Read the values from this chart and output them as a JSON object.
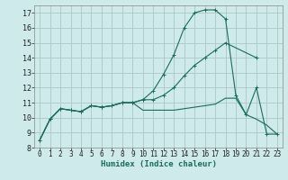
{
  "background_color": "#ceeaea",
  "grid_color": "#b0cccc",
  "line_color": "#1a6b5a",
  "xlabel": "Humidex (Indice chaleur)",
  "ylim": [
    8,
    17.5
  ],
  "xlim": [
    -0.5,
    23.5
  ],
  "yticks": [
    8,
    9,
    10,
    11,
    12,
    13,
    14,
    15,
    16,
    17
  ],
  "xticks": [
    0,
    1,
    2,
    3,
    4,
    5,
    6,
    7,
    8,
    9,
    10,
    11,
    12,
    13,
    14,
    15,
    16,
    17,
    18,
    19,
    20,
    21,
    22,
    23
  ],
  "series": [
    {
      "x": [
        0,
        1,
        2,
        3,
        4,
        5,
        6,
        7,
        8,
        9,
        10,
        11,
        12,
        13,
        14,
        15,
        16,
        17,
        18,
        19,
        20,
        21,
        22,
        23
      ],
      "y": [
        8.5,
        9.9,
        10.6,
        10.5,
        10.4,
        10.8,
        10.7,
        10.8,
        11.0,
        11.0,
        11.2,
        11.8,
        12.9,
        14.2,
        16.0,
        17.0,
        17.2,
        17.2,
        16.6,
        11.5,
        10.2,
        12.0,
        8.9,
        8.9
      ],
      "marker": "+"
    },
    {
      "x": [
        0,
        1,
        2,
        3,
        4,
        5,
        6,
        7,
        8,
        9,
        10,
        11,
        12,
        13,
        14,
        15,
        16,
        17,
        18,
        21
      ],
      "y": [
        8.5,
        9.9,
        10.6,
        10.5,
        10.4,
        10.8,
        10.7,
        10.8,
        11.0,
        11.0,
        11.2,
        11.2,
        11.5,
        12.0,
        12.8,
        13.5,
        14.0,
        14.5,
        15.0,
        14.0
      ],
      "marker": "+"
    },
    {
      "x": [
        0,
        1,
        2,
        3,
        4,
        5,
        6,
        7,
        8,
        9,
        10,
        11,
        12,
        13,
        14,
        15,
        16,
        17,
        18,
        19,
        20,
        21,
        22,
        23
      ],
      "y": [
        8.5,
        9.9,
        10.6,
        10.5,
        10.4,
        10.8,
        10.7,
        10.8,
        11.0,
        11.0,
        10.5,
        10.5,
        10.5,
        10.5,
        10.6,
        10.7,
        10.8,
        10.9,
        11.3,
        11.3,
        10.2,
        9.9,
        9.5,
        8.9
      ],
      "marker": null
    }
  ]
}
